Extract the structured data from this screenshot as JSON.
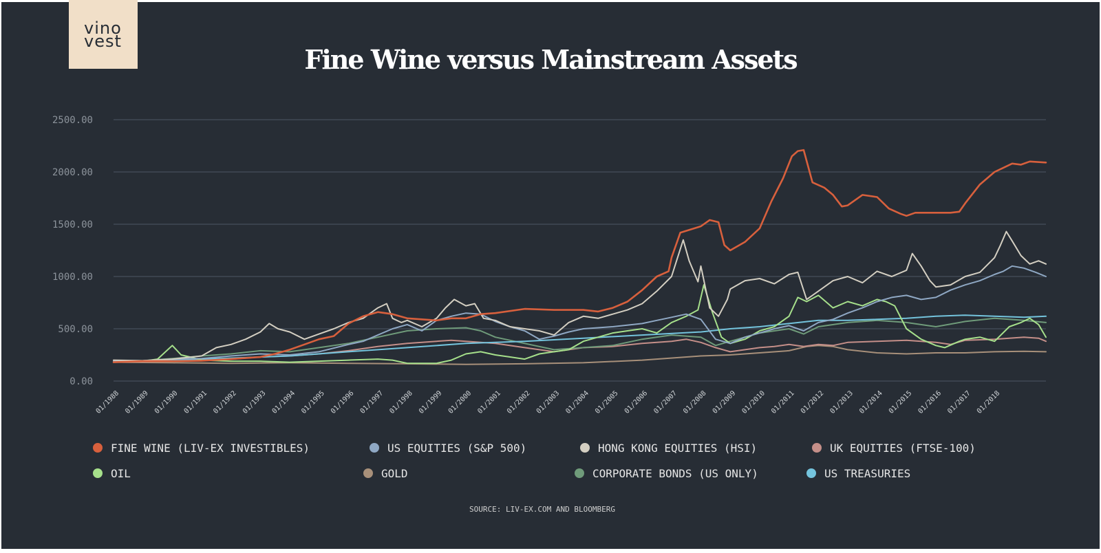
{
  "brand": {
    "logo_line1": "vino",
    "logo_line2": "vest"
  },
  "chart_data": {
    "type": "line",
    "title": "Fine Wine versus Mainstream Assets",
    "source": "SOURCE: LIV-EX.COM AND BLOOMBERG",
    "ylim": [
      0,
      2500
    ],
    "y_ticks": [
      "2500.00",
      "2000.00",
      "1500.00",
      "1000.00",
      "500.00",
      "0.00"
    ],
    "x_ticks": [
      "01/1988",
      "01/1989",
      "01/1990",
      "01/1991",
      "01/1992",
      "01/1993",
      "01/1994",
      "01/1995",
      "01/1996",
      "01/1997",
      "01/1998",
      "01/1999",
      "01/2000",
      "01/2001",
      "01/2002",
      "01/2003",
      "01/2004",
      "01/2005",
      "01/2006",
      "01/2007",
      "01/2008",
      "01/2009",
      "01/2010",
      "01/2011",
      "01/2012",
      "01/2013",
      "01/2014",
      "01/2015",
      "01/2016",
      "01/2017",
      "01/2018"
    ],
    "x_range": [
      1988.0,
      2019.75
    ],
    "grid": true,
    "legend_position": "bottom",
    "series": [
      {
        "name": "FINE WINE (LIV-EX INVESTIBLES)",
        "color": "#d8603d",
        "x": [
          1988,
          1989,
          1990,
          1991,
          1992,
          1993,
          1993.5,
          1994,
          1994.5,
          1995,
          1995.5,
          1996,
          1996.5,
          1997,
          1997.5,
          1998,
          1998.5,
          1999,
          1999.5,
          2000,
          2000.5,
          2001,
          2002,
          2003,
          2004,
          2004.5,
          2005,
          2005.5,
          2006,
          2006.5,
          2006.9,
          2007,
          2007.3,
          2008,
          2008.3,
          2008.6,
          2008.8,
          2009,
          2009.5,
          2010,
          2010.4,
          2010.8,
          2011.1,
          2011.3,
          2011.5,
          2011.8,
          2012.2,
          2012.5,
          2012.8,
          2013,
          2013.5,
          2014,
          2014.4,
          2014.8,
          2015,
          2015.3,
          2015.8,
          2016.5,
          2016.8,
          2017,
          2017.5,
          2018,
          2018.3,
          2018.6,
          2018.9,
          2019.2,
          2019.75
        ],
        "values": [
          180,
          190,
          190,
          195,
          210,
          230,
          260,
          300,
          350,
          400,
          430,
          550,
          620,
          660,
          640,
          600,
          590,
          580,
          600,
          600,
          640,
          650,
          690,
          680,
          680,
          665,
          700,
          760,
          870,
          1000,
          1050,
          1180,
          1420,
          1480,
          1540,
          1520,
          1300,
          1250,
          1330,
          1460,
          1720,
          1940,
          2150,
          2200,
          2210,
          1900,
          1850,
          1780,
          1670,
          1680,
          1780,
          1760,
          1650,
          1600,
          1580,
          1610,
          1610,
          1610,
          1620,
          1700,
          1880,
          2000,
          2040,
          2080,
          2070,
          2100,
          2090
        ]
      },
      {
        "name": "US EQUITIES (S&P 500)",
        "color": "#8fa8c4",
        "x": [
          1988,
          1989,
          1990,
          1991,
          1992,
          1993,
          1994,
          1995,
          1996,
          1996.5,
          1997,
          1997.5,
          1998,
          1998.5,
          1999,
          1999.5,
          2000,
          2000.5,
          2001,
          2001.5,
          2002,
          2002.5,
          2003,
          2003.5,
          2004,
          2005,
          2006,
          2006.5,
          2007,
          2007.5,
          2008,
          2008.5,
          2009,
          2009.5,
          2010,
          2010.5,
          2011,
          2011.5,
          2012,
          2012.5,
          2013,
          2013.5,
          2014,
          2014.5,
          2015,
          2015.5,
          2016,
          2016.5,
          2017,
          2017.5,
          2018,
          2018.3,
          2018.6,
          2019,
          2019.4,
          2019.75
        ],
        "values": [
          190,
          195,
          210,
          215,
          240,
          260,
          250,
          280,
          350,
          380,
          440,
          500,
          540,
          480,
          580,
          620,
          650,
          640,
          570,
          520,
          480,
          400,
          430,
          470,
          500,
          520,
          550,
          580,
          610,
          640,
          590,
          400,
          360,
          420,
          460,
          500,
          530,
          480,
          560,
          590,
          650,
          700,
          760,
          800,
          820,
          780,
          800,
          870,
          920,
          960,
          1020,
          1050,
          1100,
          1080,
          1040,
          1000
        ]
      },
      {
        "name": "HONG KONG EQUITIES (HSI)",
        "color": "#d4cfc2",
        "x": [
          1988,
          1989,
          1990,
          1991,
          1991.5,
          1992,
          1992.5,
          1993,
          1993.3,
          1993.6,
          1994,
          1994.5,
          1995,
          1995.5,
          1996,
          1996.5,
          1997,
          1997.3,
          1997.5,
          1997.8,
          1998,
          1998.5,
          1999,
          1999.3,
          1999.6,
          2000,
          2000.3,
          2000.6,
          2001,
          2001.5,
          2002,
          2002.5,
          2003,
          2003.5,
          2004,
          2004.5,
          2005,
          2005.5,
          2006,
          2006.5,
          2007,
          2007.4,
          2007.6,
          2007.9,
          2008,
          2008.3,
          2008.6,
          2008.9,
          2009,
          2009.5,
          2010,
          2010.5,
          2011,
          2011.3,
          2011.6,
          2012,
          2012.5,
          2013,
          2013.5,
          2014,
          2014.5,
          2015,
          2015.2,
          2015.5,
          2015.8,
          2016,
          2016.5,
          2017,
          2017.5,
          2018,
          2018.2,
          2018.4,
          2018.6,
          2018.9,
          2019.2,
          2019.5,
          2019.75
        ],
        "values": [
          200,
          195,
          210,
          240,
          320,
          350,
          400,
          470,
          550,
          500,
          470,
          400,
          450,
          500,
          560,
          600,
          700,
          740,
          600,
          560,
          580,
          520,
          600,
          700,
          780,
          720,
          740,
          600,
          580,
          520,
          500,
          480,
          440,
          560,
          620,
          600,
          640,
          680,
          740,
          860,
          1000,
          1350,
          1150,
          950,
          1100,
          700,
          620,
          780,
          880,
          960,
          980,
          930,
          1020,
          1040,
          780,
          860,
          960,
          1000,
          940,
          1050,
          1000,
          1060,
          1220,
          1100,
          960,
          900,
          920,
          1000,
          1040,
          1180,
          1300,
          1430,
          1340,
          1200,
          1120,
          1150,
          1120
        ]
      },
      {
        "name": "UK EQUITIES (FTSE-100)",
        "color": "#c58f89",
        "x": [
          1988,
          1989,
          1990,
          1991,
          1992,
          1993,
          1994,
          1995,
          1996,
          1997,
          1998,
          1999,
          1999.5,
          2000,
          2001,
          2002,
          2003,
          2003.5,
          2004,
          2005,
          2006,
          2007,
          2007.5,
          2008,
          2008.5,
          2009,
          2009.5,
          2010,
          2010.5,
          2011,
          2011.5,
          2012,
          2012.5,
          2013,
          2014,
          2015,
          2016,
          2016.5,
          2017,
          2018,
          2018.5,
          2019,
          2019.5,
          2019.75
        ],
        "values": [
          180,
          185,
          190,
          200,
          210,
          230,
          240,
          260,
          290,
          330,
          360,
          380,
          390,
          380,
          360,
          320,
          280,
          300,
          320,
          330,
          360,
          380,
          400,
          370,
          320,
          280,
          300,
          320,
          330,
          350,
          330,
          350,
          340,
          370,
          380,
          390,
          370,
          350,
          390,
          400,
          410,
          420,
          410,
          380
        ]
      },
      {
        "name": "OIL",
        "color": "#a6e08b",
        "x": [
          1988,
          1989,
          1989.5,
          1990,
          1990.3,
          1990.6,
          1991,
          1992,
          1993,
          1994,
          1995,
          1996,
          1997,
          1997.5,
          1998,
          1999,
          1999.5,
          2000,
          2000.5,
          2001,
          2001.5,
          2002,
          2002.5,
          2003,
          2003.5,
          2004,
          2004.5,
          2005,
          2005.5,
          2006,
          2006.5,
          2007,
          2007.5,
          2007.9,
          2008.1,
          2008.4,
          2008.7,
          2009,
          2009.5,
          2010,
          2010.5,
          2011,
          2011.3,
          2011.6,
          2012,
          2012.5,
          2013,
          2013.5,
          2014,
          2014.3,
          2014.6,
          2015,
          2015.5,
          2016,
          2016.3,
          2016.8,
          2017,
          2017.5,
          2018,
          2018.5,
          2018.9,
          2019.2,
          2019.5,
          2019.75
        ],
        "values": [
          180,
          190,
          210,
          340,
          250,
          230,
          200,
          190,
          190,
          180,
          190,
          200,
          210,
          200,
          170,
          170,
          200,
          260,
          280,
          250,
          230,
          210,
          260,
          280,
          300,
          380,
          420,
          460,
          480,
          500,
          460,
          560,
          620,
          680,
          920,
          650,
          420,
          360,
          400,
          480,
          520,
          620,
          800,
          760,
          820,
          700,
          760,
          720,
          780,
          760,
          720,
          500,
          400,
          340,
          320,
          380,
          400,
          420,
          380,
          520,
          560,
          600,
          540,
          420
        ]
      },
      {
        "name": "GOLD",
        "color": "#a8907a",
        "x": [
          1988,
          1990,
          1992,
          1994,
          1996,
          1998,
          2000,
          2002,
          2004,
          2006,
          2008,
          2009,
          2010,
          2011,
          2011.6,
          2012,
          2012.5,
          2013,
          2014,
          2015,
          2016,
          2017,
          2018,
          2019,
          2019.75
        ],
        "values": [
          180,
          175,
          170,
          175,
          170,
          165,
          160,
          165,
          175,
          200,
          240,
          250,
          270,
          290,
          330,
          340,
          330,
          300,
          270,
          260,
          270,
          270,
          280,
          285,
          280
        ]
      },
      {
        "name": "CORPORATE BONDS (US ONLY)",
        "color": "#6f9b7a",
        "x": [
          1988,
          1989,
          1990,
          1991,
          1992,
          1993,
          1994,
          1995,
          1996,
          1997,
          1998,
          1999,
          2000,
          2000.5,
          2001,
          2002,
          2003,
          2004,
          2005,
          2006,
          2007,
          2008,
          2008.5,
          2009,
          2009.5,
          2010,
          2011,
          2011.5,
          2012,
          2013,
          2014,
          2015,
          2016,
          2017,
          2018,
          2019,
          2019.75
        ],
        "values": [
          180,
          195,
          215,
          240,
          260,
          290,
          280,
          320,
          360,
          420,
          480,
          500,
          510,
          480,
          420,
          360,
          300,
          320,
          340,
          400,
          440,
          420,
          340,
          380,
          420,
          460,
          500,
          450,
          520,
          560,
          580,
          560,
          520,
          570,
          600,
          580,
          560
        ]
      },
      {
        "name": "US TREASURIES",
        "color": "#74c4dd",
        "x": [
          1988,
          1990,
          1992,
          1994,
          1996,
          1998,
          2000,
          2002,
          2004,
          2006,
          2008,
          2009,
          2010,
          2011,
          2012,
          2013,
          2014,
          2015,
          2016,
          2017,
          2018,
          2019,
          2019.75
        ],
        "values": [
          180,
          200,
          220,
          240,
          280,
          320,
          360,
          380,
          410,
          440,
          470,
          500,
          520,
          550,
          580,
          580,
          590,
          600,
          620,
          630,
          620,
          610,
          620
        ]
      }
    ]
  }
}
